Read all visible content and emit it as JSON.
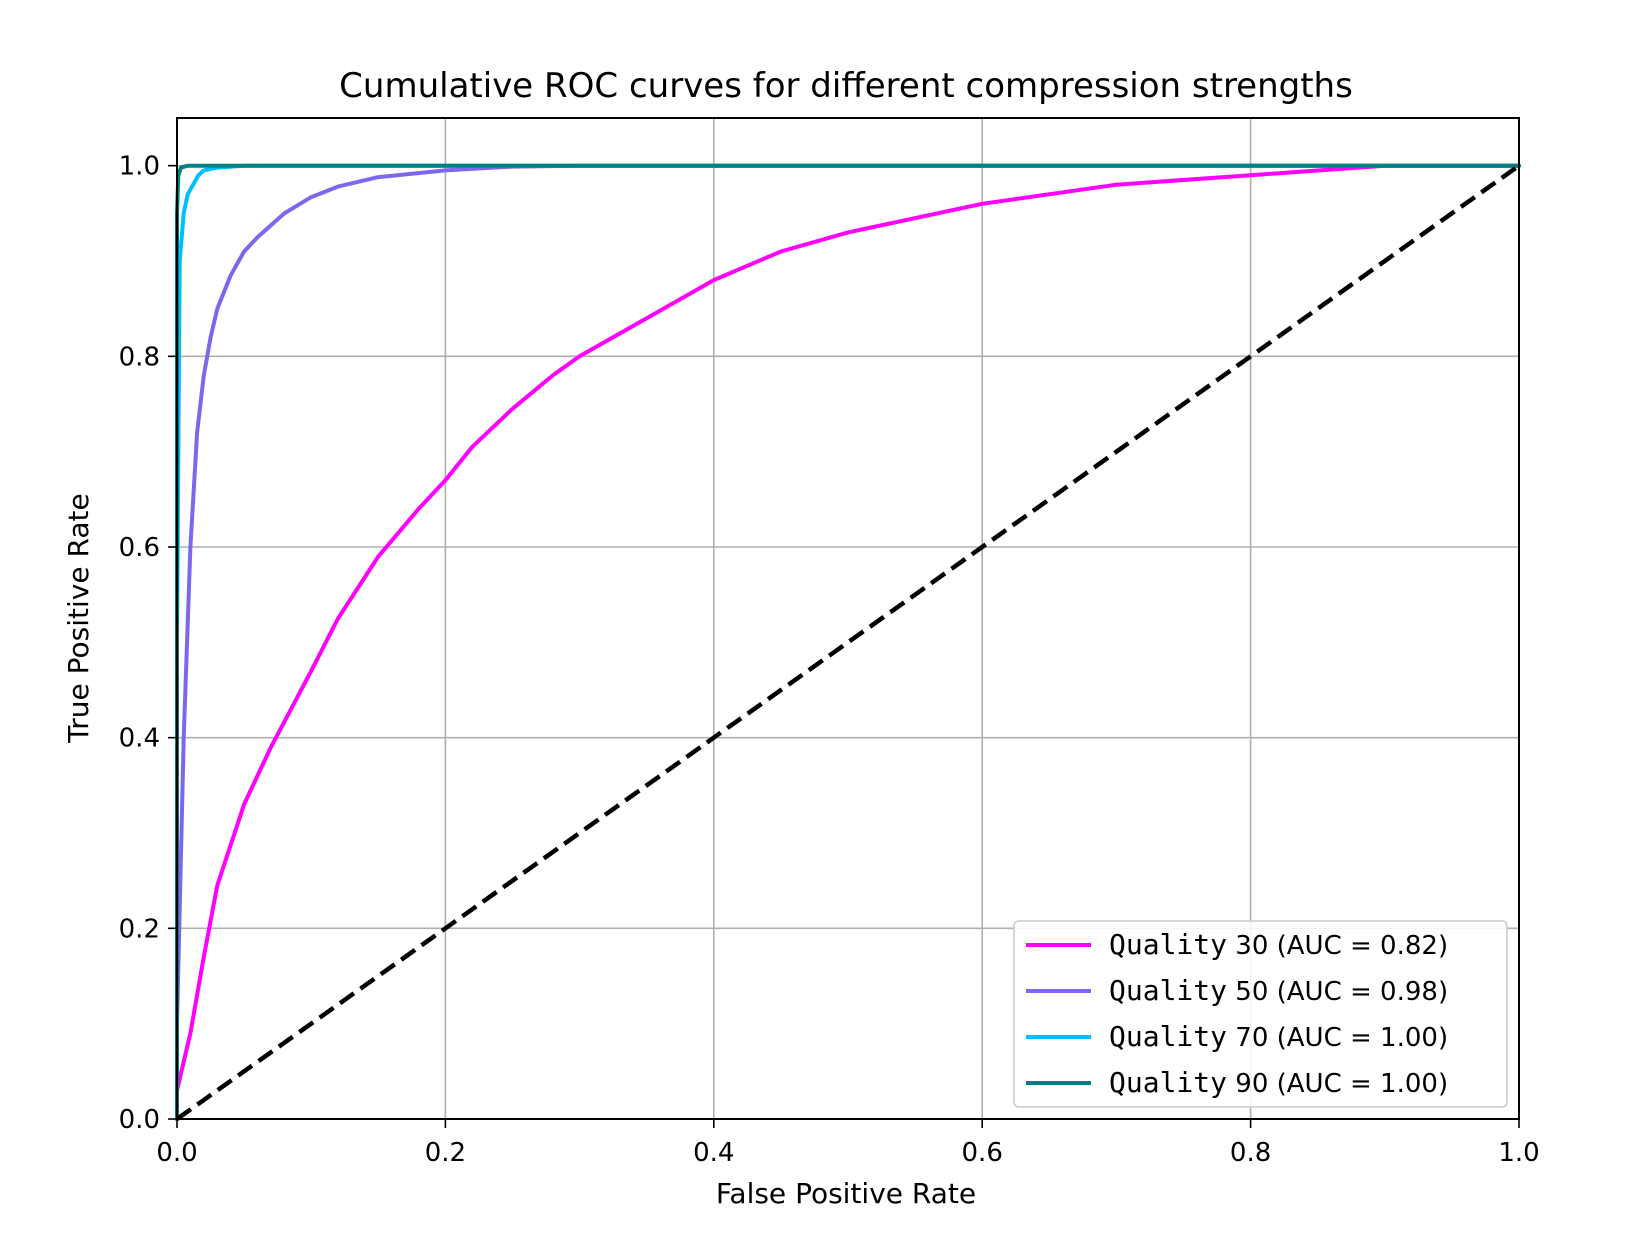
{
  "chart_data": {
    "type": "line",
    "title": "Cumulative ROC curves for different compression strengths",
    "xlabel": "False Positive Rate",
    "ylabel": "True Positive Rate",
    "xlim": [
      0.0,
      1.0
    ],
    "ylim": [
      0.0,
      1.05
    ],
    "xticks": [
      0.0,
      0.2,
      0.4,
      0.6,
      0.8,
      1.0
    ],
    "yticks": [
      0.0,
      0.2,
      0.4,
      0.6,
      0.8,
      1.0
    ],
    "xtick_labels": [
      "0.0",
      "0.2",
      "0.4",
      "0.6",
      "0.8",
      "1.0"
    ],
    "ytick_labels": [
      "0.0",
      "0.2",
      "0.4",
      "0.6",
      "0.8",
      "1.0"
    ],
    "grid": true,
    "legend_position": "lower-right",
    "series": [
      {
        "name": "Quality",
        "label_rest": " 30 (AUC = 0.82)",
        "color": "#ff00ff",
        "x": [
          0.0,
          0.0,
          0.01,
          0.02,
          0.03,
          0.05,
          0.07,
          0.085,
          0.1,
          0.12,
          0.15,
          0.18,
          0.2,
          0.22,
          0.25,
          0.28,
          0.3,
          0.35,
          0.4,
          0.45,
          0.5,
          0.6,
          0.7,
          0.8,
          0.9,
          1.0
        ],
        "y": [
          0.0,
          0.03,
          0.09,
          0.17,
          0.245,
          0.33,
          0.39,
          0.43,
          0.47,
          0.525,
          0.59,
          0.64,
          0.67,
          0.705,
          0.745,
          0.78,
          0.8,
          0.84,
          0.88,
          0.91,
          0.93,
          0.96,
          0.98,
          0.99,
          1.0,
          1.0
        ]
      },
      {
        "name": "Quality",
        "label_rest": " 50 (AUC = 0.98)",
        "color": "#7b68ee",
        "x": [
          0.0,
          0.0,
          0.005,
          0.01,
          0.015,
          0.02,
          0.025,
          0.03,
          0.04,
          0.05,
          0.06,
          0.08,
          0.1,
          0.12,
          0.15,
          0.2,
          0.25,
          0.3,
          0.4,
          1.0
        ],
        "y": [
          0.0,
          0.1,
          0.4,
          0.6,
          0.72,
          0.78,
          0.82,
          0.85,
          0.885,
          0.91,
          0.925,
          0.95,
          0.967,
          0.978,
          0.988,
          0.995,
          0.999,
          1.0,
          1.0,
          1.0
        ]
      },
      {
        "name": "Quality",
        "label_rest": " 70 (AUC = 1.00)",
        "color": "#00bfff",
        "x": [
          0.0,
          0.0,
          0.002,
          0.005,
          0.008,
          0.012,
          0.016,
          0.02,
          0.03,
          0.05,
          0.1,
          1.0
        ],
        "y": [
          0.0,
          0.5,
          0.9,
          0.95,
          0.97,
          0.98,
          0.99,
          0.995,
          0.998,
          1.0,
          1.0,
          1.0
        ]
      },
      {
        "name": "Quality",
        "label_rest": " 90 (AUC = 1.00)",
        "color": "#008080",
        "x": [
          0.0,
          0.0,
          0.001,
          0.003,
          0.008,
          0.02,
          1.0
        ],
        "y": [
          0.0,
          0.95,
          0.99,
          0.998,
          1.0,
          1.0,
          1.0
        ]
      }
    ],
    "reference_line": {
      "x": [
        0.0,
        1.0
      ],
      "y": [
        0.0,
        1.0
      ],
      "color": "#000000",
      "style": "dashed"
    }
  }
}
